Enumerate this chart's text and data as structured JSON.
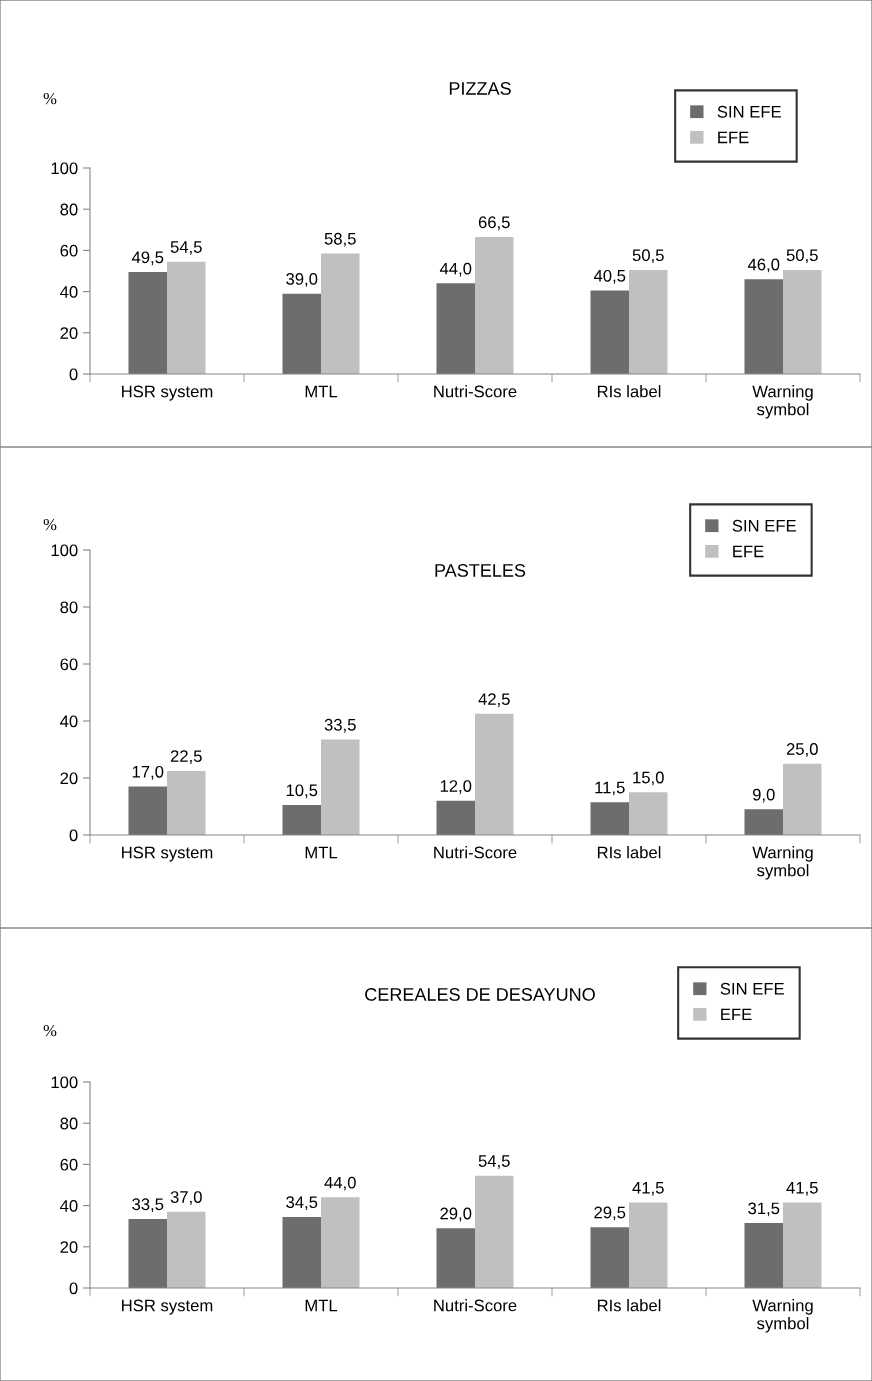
{
  "chart_data": [
    {
      "type": "bar",
      "title": "PIZZAS",
      "ylabel": "%",
      "categories": [
        "HSR system",
        "MTL",
        "Nutri-Score",
        "RIs label",
        "Warning\nsymbol"
      ],
      "ylim": [
        0,
        100
      ],
      "yticks": [
        0,
        20,
        40,
        60,
        80,
        100
      ],
      "grid": false,
      "legend": "top right",
      "series": [
        {
          "name": "SIN EFE",
          "color": "#6d6d6d",
          "values": [
            49.5,
            39.0,
            44.0,
            40.5,
            46.0
          ],
          "value_labels": [
            "49,5",
            "39,0",
            "44,0",
            "40,5",
            "46,0"
          ]
        },
        {
          "name": "EFE",
          "color": "#c0c0c0",
          "values": [
            54.5,
            58.5,
            66.5,
            50.5,
            50.5
          ],
          "value_labels": [
            "54,5",
            "58,5",
            "66,5",
            "50,5",
            "50,5"
          ]
        }
      ]
    },
    {
      "type": "bar",
      "title": "PASTELES",
      "ylabel": "%",
      "categories": [
        "HSR system",
        "MTL",
        "Nutri-Score",
        "RIs label",
        "Warning\nsymbol"
      ],
      "ylim": [
        0,
        100
      ],
      "yticks": [
        0,
        20,
        40,
        60,
        80,
        100
      ],
      "grid": false,
      "legend": "top right",
      "series": [
        {
          "name": "SIN EFE",
          "color": "#6d6d6d",
          "values": [
            17.0,
            10.5,
            12.0,
            11.5,
            9.0
          ],
          "value_labels": [
            "17,0",
            "10,5",
            "12,0",
            "11,5",
            "9,0"
          ]
        },
        {
          "name": "EFE",
          "color": "#c0c0c0",
          "values": [
            22.5,
            33.5,
            42.5,
            15.0,
            25.0
          ],
          "value_labels": [
            "22,5",
            "33,5",
            "42,5",
            "15,0",
            "25,0"
          ]
        }
      ]
    },
    {
      "type": "bar",
      "title": "CEREALES DE DESAYUNO",
      "ylabel": "%",
      "categories": [
        "HSR system",
        "MTL",
        "Nutri-Score",
        "RIs label",
        "Warning\nsymbol"
      ],
      "ylim": [
        0,
        100
      ],
      "yticks": [
        0,
        20,
        40,
        60,
        80,
        100
      ],
      "grid": false,
      "legend": "top right",
      "series": [
        {
          "name": "SIN EFE",
          "color": "#6d6d6d",
          "values": [
            33.5,
            34.5,
            29.0,
            29.5,
            31.5
          ],
          "value_labels": [
            "33,5",
            "34,5",
            "29,0",
            "29,5",
            "31,5"
          ]
        },
        {
          "name": "EFE",
          "color": "#c0c0c0",
          "values": [
            37.0,
            44.0,
            54.5,
            41.5,
            41.5
          ],
          "value_labels": [
            "37,0",
            "44,0",
            "54,5",
            "41,5",
            "41,5"
          ]
        }
      ]
    }
  ]
}
